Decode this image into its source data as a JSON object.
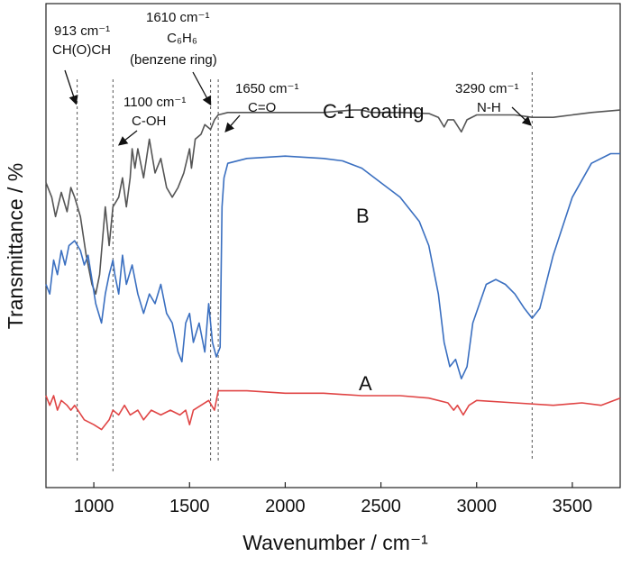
{
  "chart_data": {
    "type": "line",
    "title": "",
    "xlabel": "Wavenumber / cm⁻¹",
    "ylabel": "Transmittance / %",
    "xlim": [
      750,
      3750
    ],
    "ylim": [
      0,
      100
    ],
    "x_ticks": [
      1000,
      1500,
      2000,
      2500,
      3000,
      3500
    ],
    "x_tick_labels": [
      "1000",
      "1500",
      "2000",
      "2500",
      "3000",
      "3500"
    ],
    "y_ticks_shown": false,
    "grid": false,
    "legend": "none",
    "series": [
      {
        "name": "C-1 coating",
        "color": "#555555",
        "points": [
          [
            750,
            63
          ],
          [
            780,
            60
          ],
          [
            800,
            56
          ],
          [
            830,
            61
          ],
          [
            860,
            57
          ],
          [
            880,
            62
          ],
          [
            900,
            60
          ],
          [
            930,
            56
          ],
          [
            960,
            48
          ],
          [
            990,
            42
          ],
          [
            1010,
            40
          ],
          [
            1030,
            44
          ],
          [
            1060,
            58
          ],
          [
            1080,
            50
          ],
          [
            1100,
            58
          ],
          [
            1130,
            60
          ],
          [
            1150,
            64
          ],
          [
            1170,
            58
          ],
          [
            1190,
            64
          ],
          [
            1200,
            70
          ],
          [
            1215,
            66
          ],
          [
            1230,
            70
          ],
          [
            1260,
            64
          ],
          [
            1290,
            72
          ],
          [
            1320,
            65
          ],
          [
            1350,
            68
          ],
          [
            1380,
            62
          ],
          [
            1410,
            60
          ],
          [
            1440,
            62
          ],
          [
            1470,
            65
          ],
          [
            1500,
            70
          ],
          [
            1510,
            66
          ],
          [
            1530,
            72
          ],
          [
            1560,
            73
          ],
          [
            1580,
            75
          ],
          [
            1610,
            74
          ],
          [
            1630,
            76
          ],
          [
            1650,
            77
          ],
          [
            1700,
            77.5
          ],
          [
            1800,
            77.5
          ],
          [
            2000,
            77.5
          ],
          [
            2200,
            77.5
          ],
          [
            2350,
            78
          ],
          [
            2400,
            78
          ],
          [
            2450,
            77.5
          ],
          [
            2600,
            77.5
          ],
          [
            2750,
            77.3
          ],
          [
            2800,
            76.5
          ],
          [
            2830,
            74.5
          ],
          [
            2850,
            76
          ],
          [
            2880,
            76
          ],
          [
            2920,
            73.5
          ],
          [
            2950,
            76
          ],
          [
            3000,
            77
          ],
          [
            3100,
            77
          ],
          [
            3200,
            77
          ],
          [
            3290,
            76.5
          ],
          [
            3400,
            76.5
          ],
          [
            3500,
            77
          ],
          [
            3600,
            77.5
          ],
          [
            3750,
            78
          ]
        ]
      },
      {
        "name": "B",
        "color": "#3a6fc0",
        "points": [
          [
            750,
            42
          ],
          [
            770,
            40
          ],
          [
            790,
            47
          ],
          [
            810,
            44
          ],
          [
            830,
            49
          ],
          [
            850,
            46
          ],
          [
            870,
            50
          ],
          [
            900,
            51
          ],
          [
            930,
            49
          ],
          [
            950,
            46
          ],
          [
            970,
            48
          ],
          [
            990,
            43
          ],
          [
            1010,
            38
          ],
          [
            1040,
            34
          ],
          [
            1060,
            40
          ],
          [
            1080,
            44
          ],
          [
            1100,
            47
          ],
          [
            1110,
            44
          ],
          [
            1130,
            40
          ],
          [
            1150,
            48
          ],
          [
            1170,
            42
          ],
          [
            1200,
            46
          ],
          [
            1230,
            40
          ],
          [
            1260,
            36
          ],
          [
            1290,
            40
          ],
          [
            1320,
            38
          ],
          [
            1350,
            42
          ],
          [
            1380,
            36
          ],
          [
            1410,
            34
          ],
          [
            1440,
            28
          ],
          [
            1460,
            26
          ],
          [
            1480,
            34
          ],
          [
            1500,
            36
          ],
          [
            1520,
            30
          ],
          [
            1550,
            34
          ],
          [
            1580,
            28
          ],
          [
            1600,
            38
          ],
          [
            1620,
            30
          ],
          [
            1640,
            27
          ],
          [
            1660,
            29
          ],
          [
            1670,
            58
          ],
          [
            1680,
            64
          ],
          [
            1700,
            67
          ],
          [
            1800,
            68
          ],
          [
            2000,
            68.5
          ],
          [
            2200,
            68
          ],
          [
            2300,
            67.5
          ],
          [
            2400,
            66
          ],
          [
            2500,
            63
          ],
          [
            2600,
            60
          ],
          [
            2700,
            55
          ],
          [
            2750,
            50
          ],
          [
            2800,
            40
          ],
          [
            2830,
            30
          ],
          [
            2860,
            25
          ],
          [
            2890,
            26.5
          ],
          [
            2920,
            22.5
          ],
          [
            2950,
            25
          ],
          [
            2980,
            34
          ],
          [
            3050,
            42
          ],
          [
            3100,
            43
          ],
          [
            3150,
            42
          ],
          [
            3200,
            40
          ],
          [
            3250,
            37
          ],
          [
            3290,
            35
          ],
          [
            3330,
            37
          ],
          [
            3400,
            48
          ],
          [
            3500,
            60
          ],
          [
            3600,
            67
          ],
          [
            3700,
            69
          ],
          [
            3750,
            69
          ]
        ]
      },
      {
        "name": "A",
        "color": "#e04545",
        "points": [
          [
            750,
            19
          ],
          [
            770,
            17
          ],
          [
            790,
            19
          ],
          [
            810,
            16
          ],
          [
            830,
            18
          ],
          [
            860,
            17
          ],
          [
            880,
            16
          ],
          [
            900,
            17
          ],
          [
            950,
            14
          ],
          [
            1000,
            13
          ],
          [
            1040,
            12
          ],
          [
            1080,
            14
          ],
          [
            1100,
            16
          ],
          [
            1130,
            15
          ],
          [
            1160,
            17
          ],
          [
            1190,
            15
          ],
          [
            1230,
            16
          ],
          [
            1260,
            14
          ],
          [
            1300,
            16
          ],
          [
            1350,
            15
          ],
          [
            1400,
            16
          ],
          [
            1450,
            15
          ],
          [
            1480,
            16
          ],
          [
            1500,
            13
          ],
          [
            1520,
            16
          ],
          [
            1560,
            17
          ],
          [
            1600,
            18
          ],
          [
            1630,
            16
          ],
          [
            1650,
            20
          ],
          [
            1700,
            20
          ],
          [
            1800,
            20
          ],
          [
            2000,
            19.5
          ],
          [
            2200,
            19.5
          ],
          [
            2400,
            19
          ],
          [
            2600,
            19
          ],
          [
            2750,
            18.5
          ],
          [
            2850,
            17.5
          ],
          [
            2880,
            16
          ],
          [
            2900,
            17
          ],
          [
            2930,
            15
          ],
          [
            2960,
            17
          ],
          [
            3000,
            18
          ],
          [
            3200,
            17.5
          ],
          [
            3400,
            17
          ],
          [
            3550,
            17.5
          ],
          [
            3650,
            17
          ],
          [
            3750,
            18.5
          ]
        ]
      }
    ],
    "reference_lines_x": [
      913,
      1100,
      1610,
      1650,
      3290
    ],
    "annotations": [
      {
        "id": "913",
        "lines": [
          "913 cm⁻¹",
          "CH(O)CH"
        ]
      },
      {
        "id": "1100",
        "lines": [
          "1100 cm⁻¹",
          "C-OH"
        ]
      },
      {
        "id": "1610",
        "lines": [
          "1610 cm⁻¹",
          "C₆H₆",
          "(benzene ring)"
        ]
      },
      {
        "id": "1650",
        "lines": [
          "1650 cm⁻¹",
          "C=O"
        ]
      },
      {
        "id": "3290",
        "lines": [
          "3290 cm⁻¹",
          "N-H"
        ]
      }
    ],
    "series_labels": [
      "C-1 coating",
      "B",
      "A"
    ]
  }
}
